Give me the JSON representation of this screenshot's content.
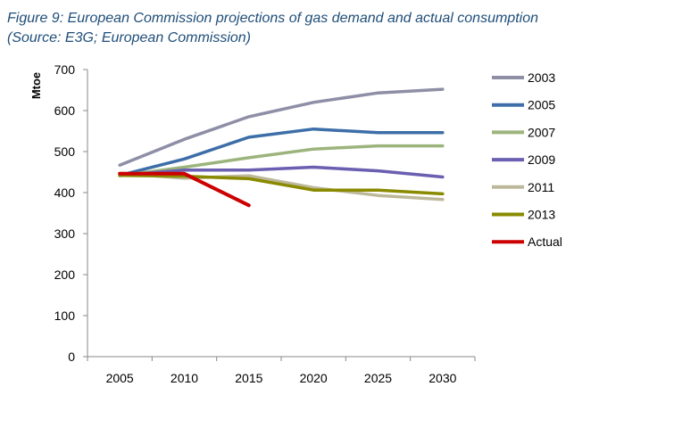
{
  "title_line1": "Figure 9: European Commission projections of gas demand and actual consumption",
  "title_line2": "(Source: E3G; European Commission)",
  "chart_data": {
    "type": "line",
    "x": [
      2005,
      2010,
      2015,
      2020,
      2025,
      2030
    ],
    "ylabel": "Mtoe",
    "xlabel": "",
    "ylim": [
      0,
      700
    ],
    "yticks": [
      0,
      100,
      200,
      300,
      400,
      500,
      600,
      700
    ],
    "grid": false,
    "legend": "right",
    "series": [
      {
        "name": "2003",
        "color": "#8e8ea6",
        "values": [
          467,
          530,
          585,
          620,
          643,
          652
        ]
      },
      {
        "name": "2005",
        "color": "#3d6ea8",
        "values": [
          442,
          482,
          535,
          555,
          546,
          546
        ]
      },
      {
        "name": "2007",
        "color": "#9cb47c",
        "values": [
          441,
          462,
          485,
          506,
          514,
          514
        ]
      },
      {
        "name": "2009",
        "color": "#6a5fb0",
        "values": [
          442,
          455,
          455,
          462,
          453,
          438
        ]
      },
      {
        "name": "2011",
        "color": "#bdb89a",
        "values": [
          447,
          435,
          441,
          412,
          393,
          383
        ]
      },
      {
        "name": "2013",
        "color": "#8a8a00",
        "values": [
          442,
          440,
          434,
          406,
          406,
          397
        ]
      },
      {
        "name": "Actual",
        "color": "#cc0000",
        "values": [
          446,
          446,
          369,
          null,
          null,
          null
        ]
      }
    ]
  }
}
